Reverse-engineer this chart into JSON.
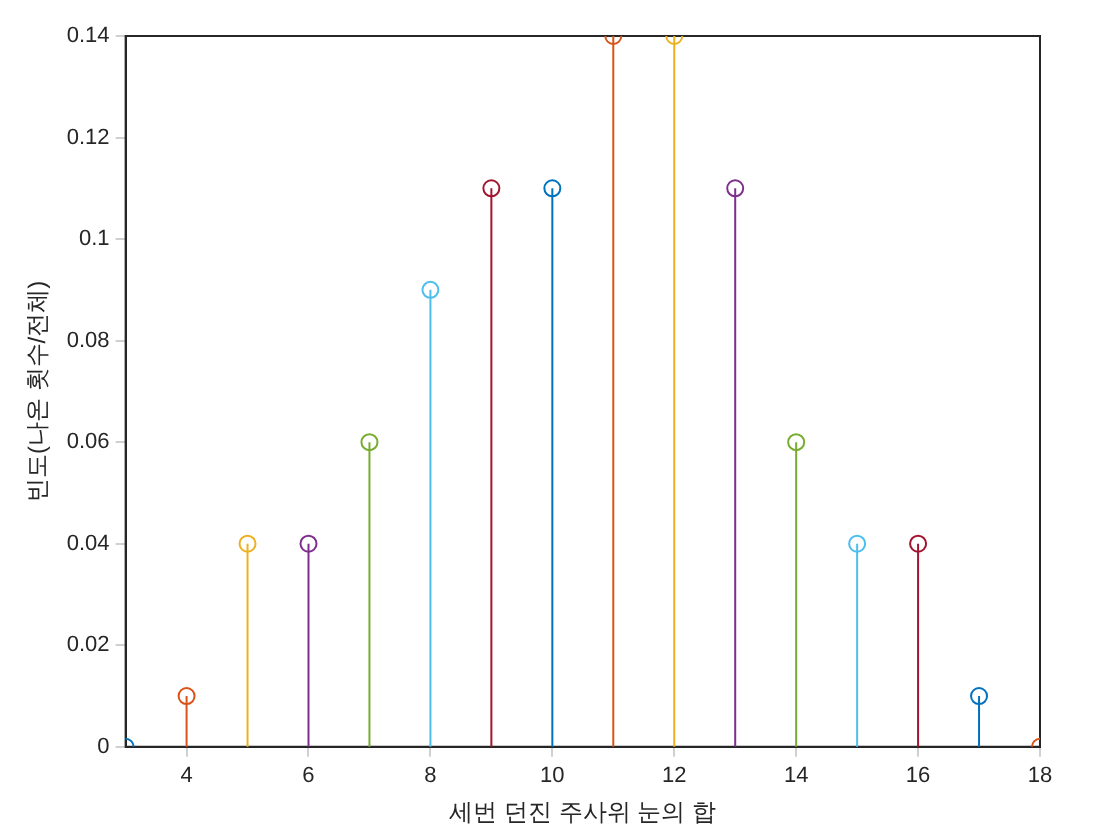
{
  "chart_data": {
    "type": "lollipop",
    "xlabel": "세번 던진 주사위 눈의 합",
    "ylabel": "빈도(나온 횟수/전체)",
    "x": [
      3,
      4,
      5,
      6,
      7,
      8,
      9,
      10,
      11,
      12,
      13,
      14,
      15,
      16,
      17,
      18
    ],
    "values": [
      0,
      0.01,
      0.04,
      0.04,
      0.06,
      0.09,
      0.11,
      0.11,
      0.14,
      0.14,
      0.11,
      0.06,
      0.04,
      0.04,
      0.01,
      0
    ],
    "colors": [
      "#0072bd",
      "#d95319",
      "#edb120",
      "#7e2f8e",
      "#77ac30",
      "#4dbeee",
      "#a2142f",
      "#0072bd",
      "#d95319",
      "#edb120",
      "#7e2f8e",
      "#77ac30",
      "#4dbeee",
      "#a2142f",
      "#0072bd",
      "#d95319"
    ],
    "xlim": [
      3,
      18
    ],
    "xticks": [
      4,
      6,
      8,
      10,
      12,
      14,
      16,
      18
    ],
    "ylim": [
      0,
      0.14
    ],
    "yticks": [
      0,
      0.02,
      0.04,
      0.06,
      0.08,
      0.1,
      0.12,
      0.14
    ],
    "marker": "circle",
    "grid": false,
    "legend": false
  }
}
